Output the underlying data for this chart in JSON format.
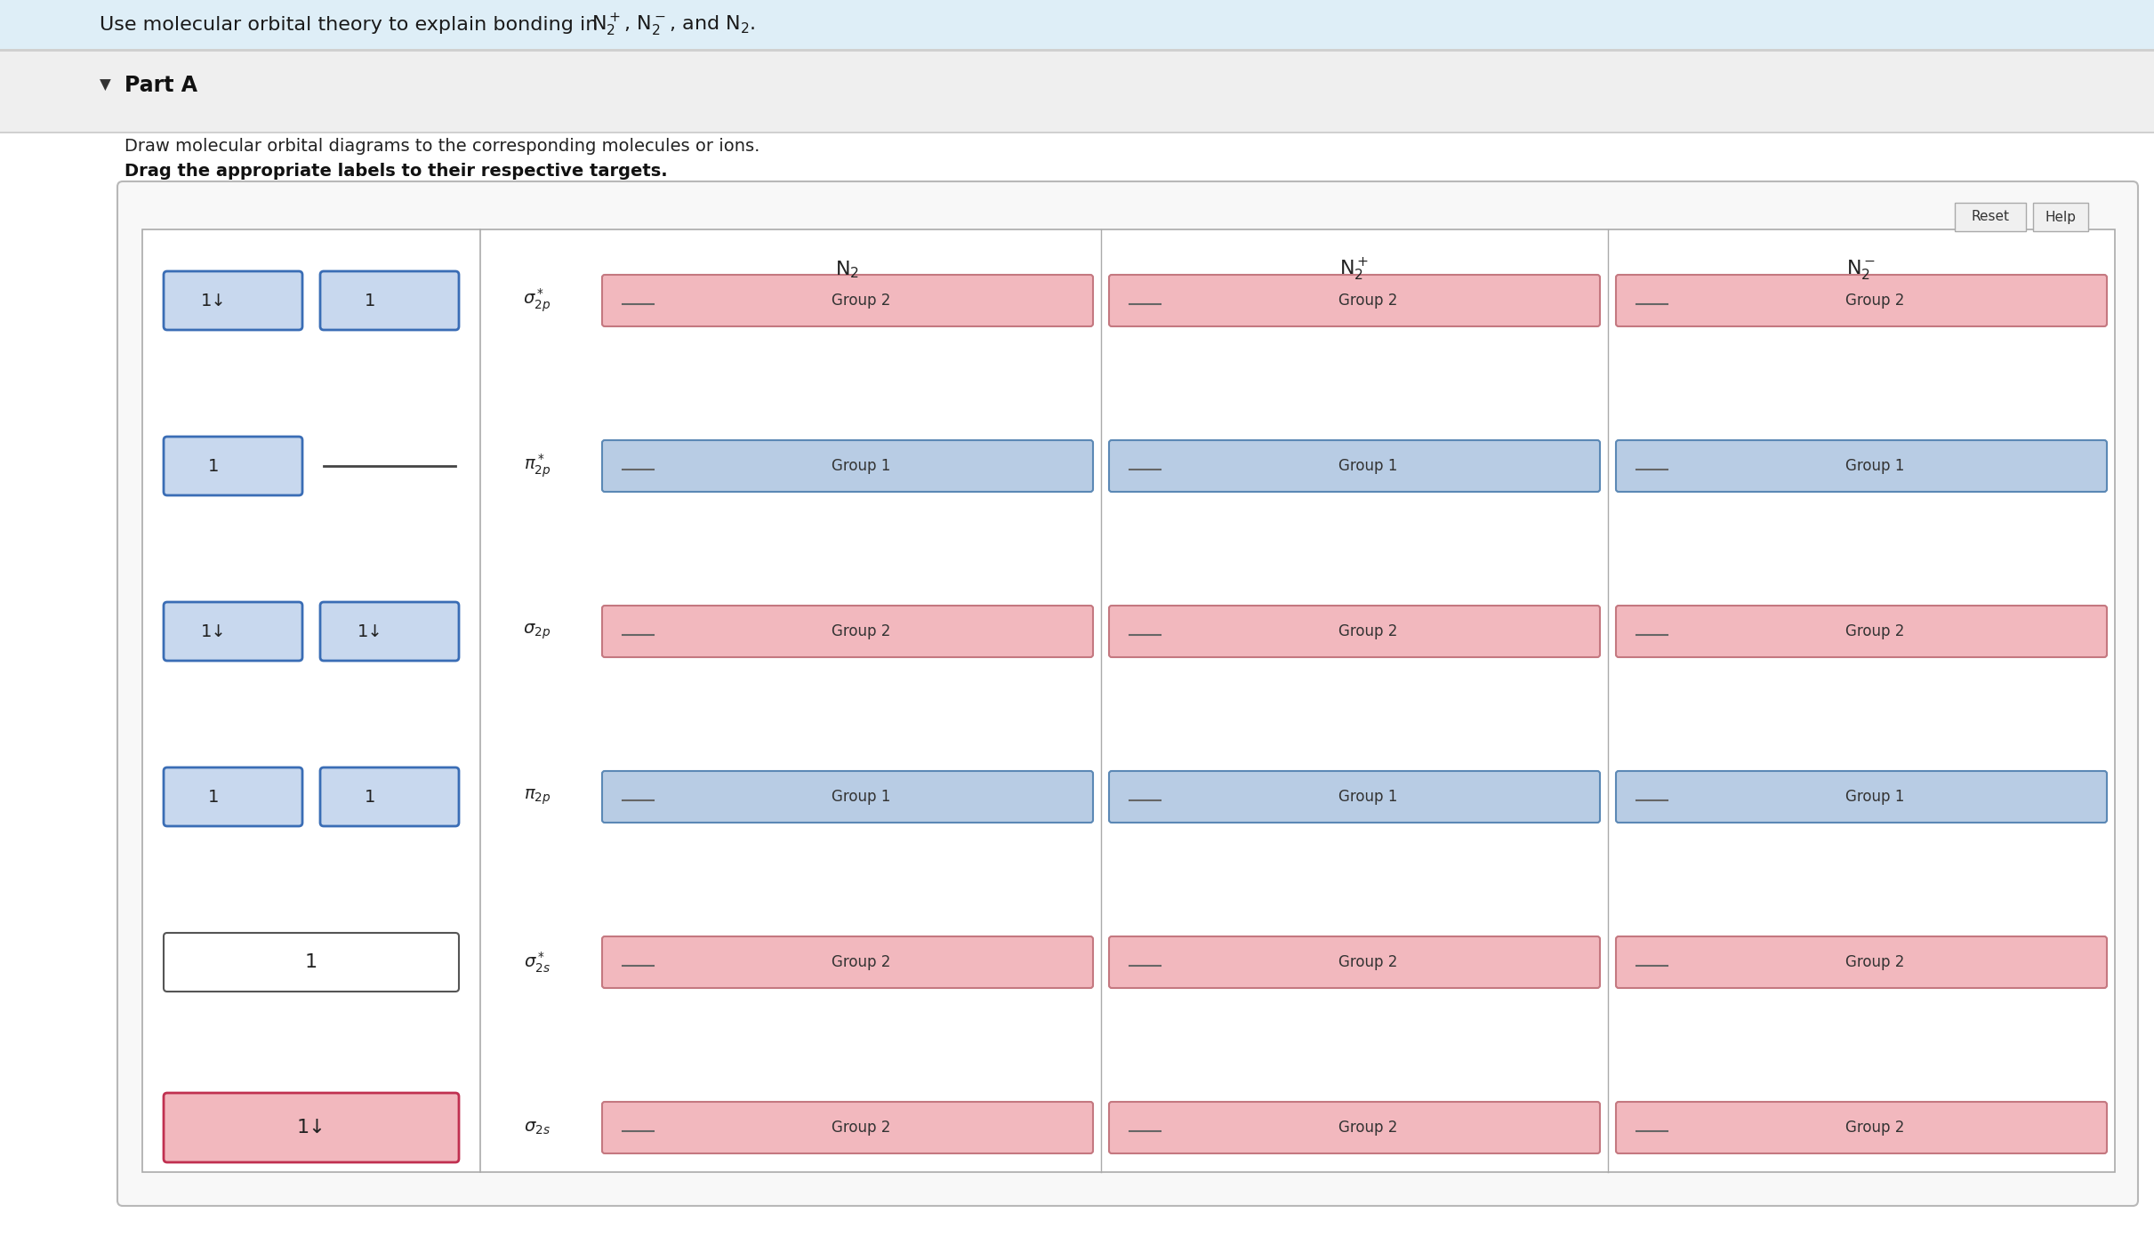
{
  "title_text": "Use molecular orbital theory to explain bonding in ",
  "title_formula": "$\\mathrm{N_2^+}$, $\\mathrm{N_2^-}$, and $\\mathrm{N_2}$.",
  "part_label": "Part A",
  "instruction1": "Draw molecular orbital diagrams to the corresponding molecules or ions.",
  "instruction2": "Drag the appropriate labels to their respective targets.",
  "bg_color": "#ffffff",
  "header_bg": "#deeef7",
  "part_bg": "#efefef",
  "pink_fc": "#f2b8be",
  "pink_ec": "#c47880",
  "blue_fc": "#b8cce4",
  "blue_ec": "#5b88b5",
  "left_box_fc": "#c8d8ee",
  "left_box_ec": "#3a6db5",
  "mol_titles": [
    "$\\mathrm{N_2}$",
    "$\\mathrm{N_2^+}$",
    "$\\mathrm{N_2^-}$"
  ],
  "orbital_labels": [
    "$\\sigma^*_{2p}$",
    "$\\pi^*_{2p}$",
    "$\\sigma_{2p}$",
    "$\\pi_{2p}$",
    "$\\sigma^*_{2s}$",
    "$\\sigma_{2s}$"
  ],
  "row_types": [
    "pink",
    "blue",
    "pink",
    "blue",
    "pink",
    "pink"
  ],
  "row_texts": [
    "Group 2",
    "Group 1",
    "Group 2",
    "Group 1",
    "Group 2",
    "Group 2"
  ],
  "button_reset": "Reset",
  "button_help": "Help"
}
